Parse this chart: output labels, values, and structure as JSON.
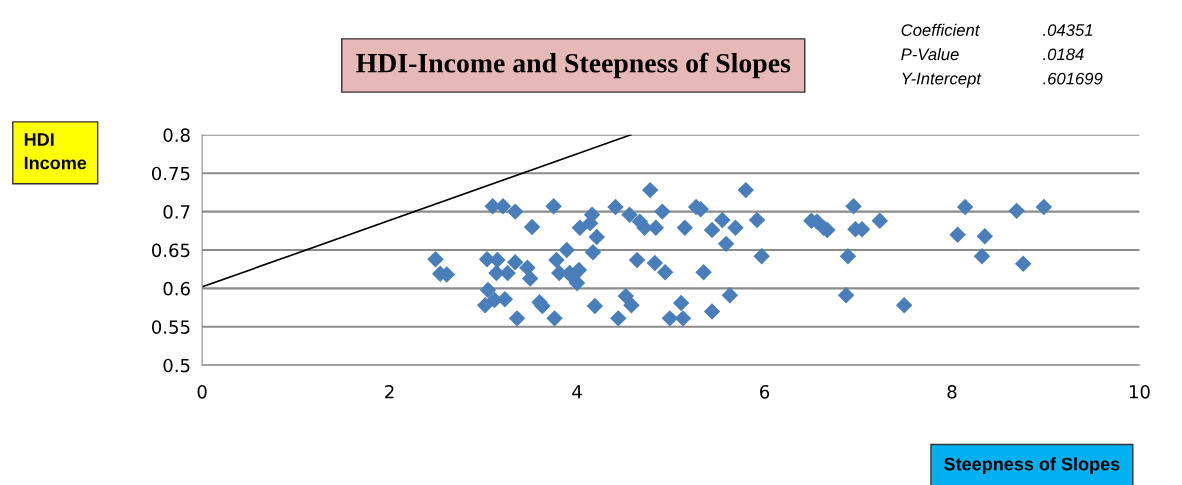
{
  "chart_data": {
    "type": "scatter",
    "title": "HDI-Income and Steepness of Slopes",
    "xlabel": "Steepness of Slopes",
    "ylabel": "HDI\nIncome",
    "annotations": [
      "Coefficient",
      ".04351",
      "P-Value",
      ".0184",
      "Y-Intercept",
      ".601699"
    ],
    "xlim": [
      0,
      10
    ],
    "xticks": [
      0,
      2,
      4,
      6,
      8,
      10
    ],
    "ylim": [
      0.5,
      0.8
    ],
    "yticks": [
      0.5,
      0.55,
      0.6,
      0.65,
      0.7,
      0.75,
      0.8
    ],
    "grid": "y",
    "legend": false,
    "marker": "diamond",
    "series": [
      {
        "color": "#4a7ebb",
        "x": [
          2.49,
          2.54,
          2.61,
          3.04,
          3.1,
          3.21,
          3.34,
          3.52,
          3.14,
          3.26,
          3.05,
          3.02,
          3.12,
          3.23,
          3.15,
          3.34,
          3.47,
          3.5,
          3.36,
          3.6,
          3.63,
          3.75,
          3.78,
          3.81,
          3.89,
          3.92,
          3.95,
          4.0,
          4.02,
          3.76,
          4.03,
          4.16,
          4.14,
          4.17,
          4.21,
          4.19,
          4.41,
          4.44,
          4.52,
          4.58,
          4.78,
          4.56,
          4.67,
          4.72,
          4.84,
          4.91,
          4.64,
          4.83,
          4.94,
          4.99,
          5.15,
          5.27,
          5.32,
          5.35,
          5.11,
          5.13,
          5.44,
          5.44,
          5.55,
          5.59,
          5.69,
          5.63,
          5.8,
          5.92,
          5.97,
          6.5,
          6.56,
          6.63,
          6.67,
          6.95,
          6.89,
          6.87,
          6.97,
          7.04,
          7.23,
          7.49,
          8.06,
          8.14,
          8.32,
          8.35,
          8.69,
          8.76,
          8.98
        ],
        "values": [
          0.638,
          0.619,
          0.618,
          0.638,
          0.707,
          0.707,
          0.7,
          0.68,
          0.62,
          0.62,
          0.598,
          0.578,
          0.585,
          0.586,
          0.637,
          0.634,
          0.627,
          0.613,
          0.561,
          0.582,
          0.577,
          0.707,
          0.637,
          0.62,
          0.65,
          0.62,
          0.615,
          0.607,
          0.624,
          0.561,
          0.679,
          0.696,
          0.685,
          0.647,
          0.667,
          0.577,
          0.706,
          0.561,
          0.59,
          0.578,
          0.728,
          0.696,
          0.687,
          0.679,
          0.679,
          0.7,
          0.637,
          0.633,
          0.621,
          0.561,
          0.679,
          0.706,
          0.703,
          0.621,
          0.581,
          0.561,
          0.676,
          0.57,
          0.689,
          0.658,
          0.679,
          0.591,
          0.728,
          0.689,
          0.642,
          0.688,
          0.687,
          0.679,
          0.676,
          0.707,
          0.642,
          0.591,
          0.677,
          0.677,
          0.688,
          0.578,
          0.67,
          0.706,
          0.642,
          0.668,
          0.701,
          0.632,
          0.706
        ]
      },
      {
        "type": "line",
        "color": "#000000",
        "marker": "none",
        "x": [
          0,
          4.574
        ],
        "values": [
          0.602,
          0.8
        ]
      }
    ]
  }
}
